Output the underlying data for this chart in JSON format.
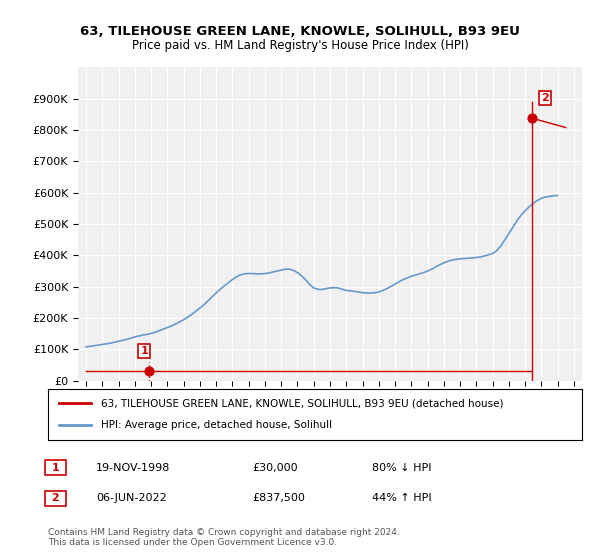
{
  "title1": "63, TILEHOUSE GREEN LANE, KNOWLE, SOLIHULL, B93 9EU",
  "title2": "Price paid vs. HM Land Registry's House Price Index (HPI)",
  "ylabel": "",
  "xlabel": "",
  "background_color": "#ffffff",
  "plot_bg_color": "#f0f0f0",
  "hpi_color": "#6699cc",
  "price_color": "#cc0000",
  "ylim_min": 0,
  "ylim_max": 1000000,
  "yticks": [
    0,
    100000,
    200000,
    300000,
    400000,
    500000,
    600000,
    700000,
    800000,
    900000
  ],
  "ytick_labels": [
    "£0",
    "£100K",
    "£200K",
    "£300K",
    "£400K",
    "£500K",
    "£600K",
    "£700K",
    "£800K",
    "£900K"
  ],
  "sale1_year": 1998.88,
  "sale1_price": 30000,
  "sale2_year": 2022.43,
  "sale2_price": 837500,
  "legend_label1": "63, TILEHOUSE GREEN LANE, KNOWLE, SOLIHULL, B93 9EU (detached house)",
  "legend_label2": "HPI: Average price, detached house, Solihull",
  "note1_num": "1",
  "note1_date": "19-NOV-1998",
  "note1_price": "£30,000",
  "note1_hpi": "80% ↓ HPI",
  "note2_num": "2",
  "note2_date": "06-JUN-2022",
  "note2_price": "£837,500",
  "note2_hpi": "44% ↑ HPI",
  "footnote": "Contains HM Land Registry data © Crown copyright and database right 2024.\nThis data is licensed under the Open Government Licence v3.0.",
  "hpi_years": [
    1995,
    1995.25,
    1995.5,
    1995.75,
    1996,
    1996.25,
    1996.5,
    1996.75,
    1997,
    1997.25,
    1997.5,
    1997.75,
    1998,
    1998.25,
    1998.5,
    1998.75,
    1999,
    1999.25,
    1999.5,
    1999.75,
    2000,
    2000.25,
    2000.5,
    2000.75,
    2001,
    2001.25,
    2001.5,
    2001.75,
    2002,
    2002.25,
    2002.5,
    2002.75,
    2003,
    2003.25,
    2003.5,
    2003.75,
    2004,
    2004.25,
    2004.5,
    2004.75,
    2005,
    2005.25,
    2005.5,
    2005.75,
    2006,
    2006.25,
    2006.5,
    2006.75,
    2007,
    2007.25,
    2007.5,
    2007.75,
    2008,
    2008.25,
    2008.5,
    2008.75,
    2009,
    2009.25,
    2009.5,
    2009.75,
    2010,
    2010.25,
    2010.5,
    2010.75,
    2011,
    2011.25,
    2011.5,
    2011.75,
    2012,
    2012.25,
    2012.5,
    2012.75,
    2013,
    2013.25,
    2013.5,
    2013.75,
    2014,
    2014.25,
    2014.5,
    2014.75,
    2015,
    2015.25,
    2015.5,
    2015.75,
    2016,
    2016.25,
    2016.5,
    2016.75,
    2017,
    2017.25,
    2017.5,
    2017.75,
    2018,
    2018.25,
    2018.5,
    2018.75,
    2019,
    2019.25,
    2019.5,
    2019.75,
    2020,
    2020.25,
    2020.5,
    2020.75,
    2021,
    2021.25,
    2021.5,
    2021.75,
    2022,
    2022.25,
    2022.5,
    2022.75,
    2023,
    2023.25,
    2023.5,
    2023.75,
    2024
  ],
  "hpi_values": [
    108000,
    110000,
    112000,
    114000,
    116000,
    118000,
    120000,
    123000,
    126000,
    129000,
    132000,
    136000,
    140000,
    143000,
    146000,
    148000,
    151000,
    155000,
    160000,
    165000,
    170000,
    175000,
    181000,
    188000,
    195000,
    203000,
    212000,
    222000,
    232000,
    243000,
    255000,
    268000,
    280000,
    292000,
    303000,
    313000,
    323000,
    332000,
    338000,
    341000,
    342000,
    342000,
    341000,
    341000,
    342000,
    344000,
    347000,
    350000,
    353000,
    356000,
    356000,
    352000,
    345000,
    335000,
    322000,
    307000,
    296000,
    292000,
    291000,
    294000,
    296000,
    297000,
    296000,
    292000,
    288000,
    287000,
    285000,
    283000,
    281000,
    280000,
    280000,
    281000,
    283000,
    288000,
    294000,
    301000,
    308000,
    316000,
    323000,
    328000,
    333000,
    337000,
    341000,
    345000,
    350000,
    356000,
    363000,
    370000,
    376000,
    381000,
    385000,
    387000,
    389000,
    390000,
    391000,
    392000,
    393000,
    395000,
    398000,
    402000,
    406000,
    415000,
    430000,
    449000,
    469000,
    490000,
    510000,
    528000,
    542000,
    555000,
    566000,
    575000,
    582000,
    586000,
    588000,
    590000,
    591000
  ]
}
